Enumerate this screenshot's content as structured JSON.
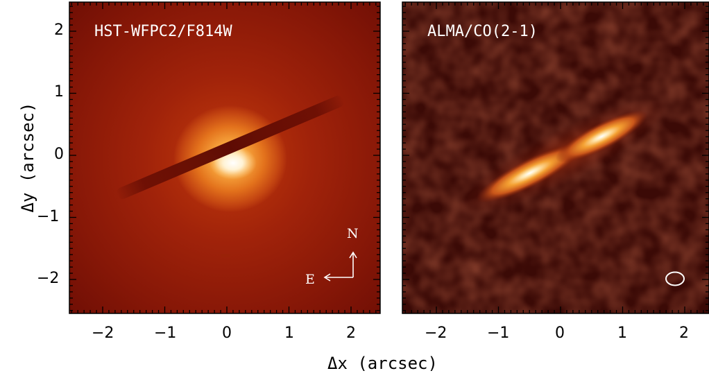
{
  "panels": {
    "left": {
      "label": "HST-WFPC2/F814W"
    },
    "right": {
      "label": "ALMA/CO(2-1)"
    }
  },
  "compass": {
    "north": "N",
    "east": "E"
  },
  "axes": {
    "xlabel": "Δx (arcsec)",
    "ylabel": "Δy (arcsec)",
    "x_ticks": [
      "−2",
      "−1",
      "0",
      "1",
      "2"
    ],
    "y_ticks": [
      "2",
      "1",
      "0",
      "−1",
      "−2"
    ]
  },
  "colors": {
    "background_hst": "#7a0f05",
    "background_alma": "#3a0a06",
    "emission_peak": "#ffffff",
    "emission_mid": "#f2a33a",
    "frame": "#000000"
  }
}
